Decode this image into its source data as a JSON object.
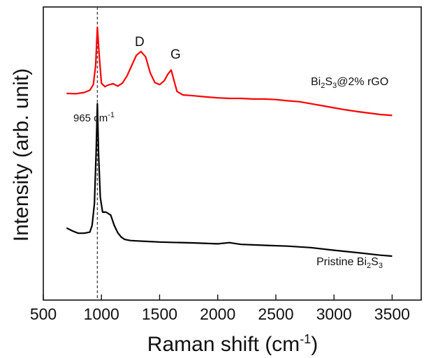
{
  "chart_data": {
    "type": "line",
    "xlabel": "Raman shift (cm",
    "xlabel_sup": "-1",
    "xlabel_end": ")",
    "ylabel": "Intensity (arb. unit)",
    "xlim": [
      500,
      3750
    ],
    "ylim": [
      0,
      1
    ],
    "xticks": [
      500,
      1000,
      1500,
      2000,
      2500,
      3000,
      3500
    ],
    "yticks_shown": false,
    "reference_line": {
      "x": 965,
      "style": "dashed"
    },
    "annotations": {
      "peak_main": "965 cm",
      "peak_main_sup": "-1",
      "D": "D",
      "G": "G",
      "composite_a": "Bi",
      "composite_a_sub": "2",
      "composite_b": "S",
      "composite_b_sub": "3",
      "composite_c": "@2% rGO",
      "pristine_a": "Pristine Bi",
      "pristine_a_sub": "2",
      "pristine_b": "S",
      "pristine_b_sub": "3"
    },
    "series": [
      {
        "color": "#ff0000",
        "x": [
          700,
          780,
          850,
          900,
          930,
          950,
          965,
          980,
          1000,
          1030,
          1060,
          1100,
          1140,
          1180,
          1220,
          1260,
          1300,
          1340,
          1380,
          1420,
          1460,
          1500,
          1540,
          1570,
          1600,
          1620,
          1650,
          1700,
          1800,
          1900,
          2000,
          2100,
          2200,
          2300,
          2400,
          2500,
          2600,
          2700,
          2800,
          2900,
          3000,
          3100,
          3200,
          3300,
          3400,
          3500
        ],
        "y": [
          0.705,
          0.704,
          0.708,
          0.716,
          0.735,
          0.8,
          0.931,
          0.84,
          0.74,
          0.728,
          0.734,
          0.738,
          0.73,
          0.74,
          0.765,
          0.8,
          0.835,
          0.848,
          0.83,
          0.775,
          0.742,
          0.735,
          0.748,
          0.77,
          0.785,
          0.755,
          0.712,
          0.7,
          0.697,
          0.693,
          0.69,
          0.688,
          0.688,
          0.686,
          0.686,
          0.684,
          0.68,
          0.677,
          0.67,
          0.663,
          0.656,
          0.649,
          0.643,
          0.638,
          0.633,
          0.63
        ]
      },
      {
        "color": "#000000",
        "x": [
          700,
          750,
          800,
          850,
          900,
          920,
          940,
          955,
          965,
          975,
          990,
          1010,
          1040,
          1080,
          1110,
          1140,
          1170,
          1200,
          1250,
          1300,
          1400,
          1500,
          1600,
          1800,
          2000,
          2100,
          2200,
          2400,
          2600,
          2800,
          3000,
          3200,
          3400,
          3500
        ],
        "y": [
          0.246,
          0.236,
          0.228,
          0.228,
          0.232,
          0.255,
          0.33,
          0.51,
          0.67,
          0.5,
          0.35,
          0.3,
          0.3,
          0.29,
          0.255,
          0.23,
          0.215,
          0.207,
          0.203,
          0.202,
          0.2,
          0.198,
          0.197,
          0.195,
          0.192,
          0.196,
          0.19,
          0.187,
          0.184,
          0.179,
          0.17,
          0.162,
          0.153,
          0.15
        ]
      }
    ]
  }
}
